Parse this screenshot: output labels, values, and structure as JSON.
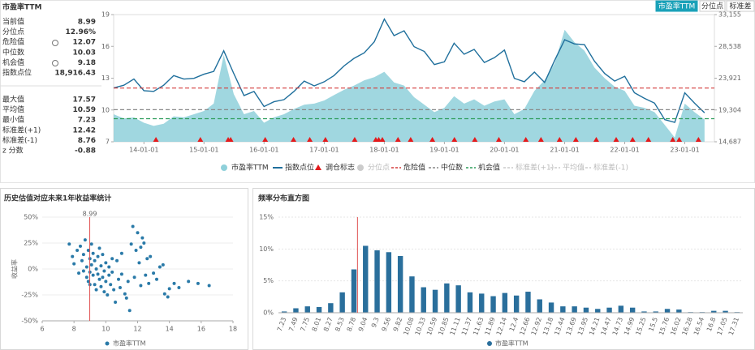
{
  "title": "市盈率TTM",
  "buttons": [
    "市盈率TTM",
    "分位点",
    "标准差"
  ],
  "stats": {
    "primary": [
      [
        "当前值",
        "8.99"
      ],
      [
        "分位点",
        "12.96%"
      ],
      [
        "危险值",
        "12.07"
      ],
      [
        "中位数",
        "10.03"
      ],
      [
        "机会值",
        "9.18"
      ],
      [
        "指数点位",
        "18,916.43"
      ]
    ],
    "secondary": [
      [
        "最大值",
        "17.57"
      ],
      [
        "平均值",
        "10.59"
      ],
      [
        "最小值",
        "7.23"
      ],
      [
        "标准差(+1)",
        "12.42"
      ],
      [
        "标准差(-1)",
        "8.76"
      ],
      [
        "z 分数",
        "-0.88"
      ]
    ]
  },
  "chart_data": [
    {
      "type": "line_area",
      "x": [
        "13-07-01",
        "13-09-01",
        "13-11-01",
        "14-01-01",
        "14-03-01",
        "14-05-01",
        "14-07-01",
        "14-09-01",
        "14-11-01",
        "15-01-01",
        "15-03-01",
        "15-05-01",
        "15-07-01",
        "15-09-01",
        "15-11-01",
        "16-01-01",
        "16-03-01",
        "16-05-01",
        "16-07-01",
        "16-09-01",
        "16-11-01",
        "17-01-01",
        "17-03-01",
        "17-05-01",
        "17-07-01",
        "17-09-01",
        "17-11-01",
        "18-01-01",
        "18-03-01",
        "18-05-01",
        "18-07-01",
        "18-09-01",
        "18-11-01",
        "19-01-01",
        "19-03-01",
        "19-05-01",
        "19-07-01",
        "19-09-01",
        "19-11-01",
        "20-01-01",
        "20-03-01",
        "20-05-01",
        "20-07-01",
        "20-09-01",
        "20-11-01",
        "21-01-01",
        "21-03-01",
        "21-05-01",
        "21-07-01",
        "21-09-01",
        "21-11-01",
        "22-01-01",
        "22-03-01",
        "22-05-01",
        "22-07-01",
        "22-09-01",
        "22-11-01",
        "23-01-01",
        "23-03-01",
        "23-05-01"
      ],
      "series": [
        {
          "name": "市盈率TTM",
          "color": "#8fd0da",
          "values": [
            9.6,
            9.2,
            9.3,
            8.8,
            8.5,
            8.7,
            9.4,
            9.3,
            9.6,
            9.9,
            10.6,
            15.2,
            11.5,
            9.6,
            9.9,
            8.8,
            9.3,
            9.6,
            10.1,
            10.5,
            10.6,
            10.9,
            11.4,
            11.9,
            12.3,
            12.8,
            13.1,
            13.6,
            12.6,
            12.3,
            11.2,
            10.5,
            9.8,
            10.2,
            11.3,
            10.6,
            11.0,
            10.4,
            10.8,
            11.0,
            9.6,
            10.1,
            11.8,
            12.8,
            14.4,
            17.57,
            16.4,
            15.6,
            14.0,
            13.0,
            12.2,
            11.8,
            10.4,
            10.2,
            9.8,
            8.6,
            7.4,
            10.6,
            9.8,
            9.1
          ]
        },
        {
          "name": "指数点位",
          "color": "#1f6f9c",
          "axis": "y2",
          "values": [
            22500,
            22900,
            23800,
            22100,
            22000,
            22900,
            24300,
            23800,
            23900,
            24500,
            24900,
            27900,
            24600,
            21400,
            22000,
            19800,
            20500,
            20800,
            22000,
            23500,
            22800,
            23400,
            24300,
            25700,
            26800,
            27600,
            29200,
            32500,
            30100,
            30800,
            28500,
            27800,
            25900,
            26300,
            29000,
            27400,
            28100,
            26200,
            26900,
            28000,
            23900,
            23400,
            24800,
            23300,
            26500,
            29500,
            28900,
            28800,
            26400,
            24600,
            23500,
            24200,
            21800,
            21000,
            20300,
            17900,
            17500,
            21800,
            20300,
            18900
          ]
        }
      ],
      "rebalance": {
        "name": "调仓标志",
        "color": "#e31a1c",
        "x": [
          "14-03-15",
          "14-12-10",
          "15-05-28",
          "15-06-12",
          "16-01-08",
          "16-06-28",
          "16-10-05",
          "17-01-08",
          "17-07-05",
          "17-11-10",
          "17-11-28",
          "17-12-20",
          "18-03-25",
          "18-06-10",
          "18-10-20",
          "19-03-03",
          "19-07-05",
          "19-11-28",
          "20-05-10",
          "20-08-10",
          "20-12-01",
          "21-03-10",
          "21-07-12",
          "21-11-10",
          "22-02-18",
          "22-05-25",
          "22-10-20",
          "22-11-28",
          "23-03-25"
        ]
      },
      "reference_lines": [
        {
          "name": "危险值",
          "value": 12.07,
          "color": "#d43a3a"
        },
        {
          "name": "中位数",
          "value": 10.03,
          "color": "#888888"
        },
        {
          "name": "机会值",
          "value": 9.18,
          "color": "#2e9d5b"
        }
      ],
      "inactive_legend": [
        "分位点",
        "标准差(+1)",
        "平均值",
        "标准差(-1)"
      ],
      "xlim": [
        "13-07-01",
        "23-06-30"
      ],
      "xticks": [
        "14-01-01",
        "15-01-01",
        "16-01-01",
        "17-01-01",
        "18-01-01",
        "19-01-01",
        "20-01-01",
        "21-01-01",
        "22-01-01",
        "23-01-01"
      ],
      "ylim": [
        7,
        19
      ],
      "yticks": [
        7,
        10,
        13,
        16,
        19
      ],
      "y2lim": [
        14687,
        33155
      ],
      "y2ticks": [
        {
          "value": 14687,
          "label": "14,687"
        },
        {
          "value": 19304,
          "label": "19,304"
        },
        {
          "value": 23921,
          "label": "23,921"
        },
        {
          "value": 28538,
          "label": "28,538"
        },
        {
          "value": 33155,
          "label": "33,155"
        }
      ]
    },
    {
      "type": "scatter",
      "title": "历史估值对应未来1年收益率统计",
      "ylabel": "收益率",
      "series": [
        {
          "name": "市盈率TTM",
          "color": "#2a7aa8",
          "x": [
            7.7,
            7.9,
            8.0,
            8.2,
            8.3,
            8.4,
            8.5,
            8.6,
            8.6,
            8.7,
            8.8,
            8.8,
            8.9,
            8.9,
            9.0,
            9.0,
            9.1,
            9.1,
            9.2,
            9.2,
            9.3,
            9.3,
            9.4,
            9.4,
            9.5,
            9.5,
            9.6,
            9.6,
            9.7,
            9.7,
            9.8,
            9.8,
            9.9,
            9.9,
            10.0,
            10.0,
            10.1,
            10.2,
            10.2,
            10.3,
            10.4,
            10.4,
            10.5,
            10.6,
            10.7,
            10.8,
            10.9,
            11.0,
            11.0,
            11.2,
            11.3,
            11.4,
            11.5,
            11.6,
            11.8,
            11.9,
            12.0,
            12.1,
            12.2,
            12.3,
            12.4,
            12.5,
            12.6,
            12.7,
            12.8,
            13.0,
            13.2,
            13.4,
            13.6,
            13.7,
            13.9,
            14.0,
            14.3,
            14.6,
            15.2,
            15.8,
            16.5,
            11.7,
            12.2,
            9.0
          ],
          "values": [
            24,
            12,
            5,
            18,
            -4,
            22,
            8,
            -2,
            14,
            28,
            2,
            -8,
            18,
            -12,
            10,
            -3,
            24,
            4,
            -6,
            15,
            -15,
            8,
            0,
            -20,
            12,
            -5,
            20,
            -10,
            3,
            -17,
            -8,
            14,
            -2,
            -22,
            6,
            -12,
            -25,
            2,
            -6,
            -15,
            10,
            -3,
            -20,
            -32,
            8,
            -10,
            -18,
            -5,
            15,
            -24,
            -28,
            -12,
            -40,
            24,
            -8,
            18,
            35,
            6,
            -16,
            30,
            25,
            -6,
            10,
            -14,
            12,
            -4,
            -10,
            2,
            4,
            -24,
            -27,
            -19,
            -14,
            -18,
            -12,
            -14,
            -16,
            41,
            21,
            -15
          ]
        }
      ],
      "current_value": 8.99,
      "current_color": "#e05050",
      "xlim": [
        6,
        18
      ],
      "xticks": [
        6,
        8,
        10,
        12,
        14,
        16,
        18
      ],
      "ylim": [
        -50,
        50
      ],
      "yticks": [
        {
          "value": -50,
          "label": "-50%"
        },
        {
          "value": -25,
          "label": "-25%"
        },
        {
          "value": 0,
          "label": "0%"
        },
        {
          "value": 25,
          "label": "25%"
        },
        {
          "value": 50,
          "label": "50%"
        }
      ]
    },
    {
      "type": "bar",
      "title": "频率分布直方图",
      "categories": [
        "7.23",
        "7.49",
        "7.75",
        "8.01",
        "8.27",
        "8.53",
        "8.78",
        "9.04",
        "9.3",
        "9.56",
        "9.82",
        "10.08",
        "10.33",
        "10.59",
        "10.85",
        "11.11",
        "11.37",
        "11.63",
        "11.89",
        "12.14",
        "12.4",
        "12.66",
        "12.92",
        "13.18",
        "13.44",
        "13.69",
        "13.95",
        "14.21",
        "14.47",
        "14.73",
        "14.99",
        "15.25",
        "15.5",
        "15.76",
        "16.02",
        "16.28",
        "16.54",
        "16.8",
        "17.05",
        "17.31"
      ],
      "series": [
        {
          "name": "市盈率TTM",
          "color": "#2a6f9c",
          "values": [
            0.2,
            0.7,
            1,
            0.9,
            1.5,
            3.2,
            6.8,
            10.5,
            9.8,
            9.5,
            8.9,
            5.7,
            4,
            3.6,
            4.6,
            4.3,
            3.2,
            3,
            2.6,
            3.1,
            2.7,
            3.3,
            2.1,
            1.6,
            1,
            1,
            0.8,
            0.6,
            0.8,
            1.1,
            0.8,
            0.2,
            0.2,
            0.6,
            0.5,
            0.1,
            0.1,
            0.3,
            0.3,
            0.1
          ]
        }
      ],
      "current_value": 8.99,
      "current_color": "#e05050",
      "ylim": [
        0,
        15
      ],
      "yticks": [
        {
          "value": 0,
          "label": "0%"
        },
        {
          "value": 5,
          "label": "5%"
        },
        {
          "value": 10,
          "label": "10%"
        },
        {
          "value": 15,
          "label": "15%"
        }
      ]
    }
  ]
}
